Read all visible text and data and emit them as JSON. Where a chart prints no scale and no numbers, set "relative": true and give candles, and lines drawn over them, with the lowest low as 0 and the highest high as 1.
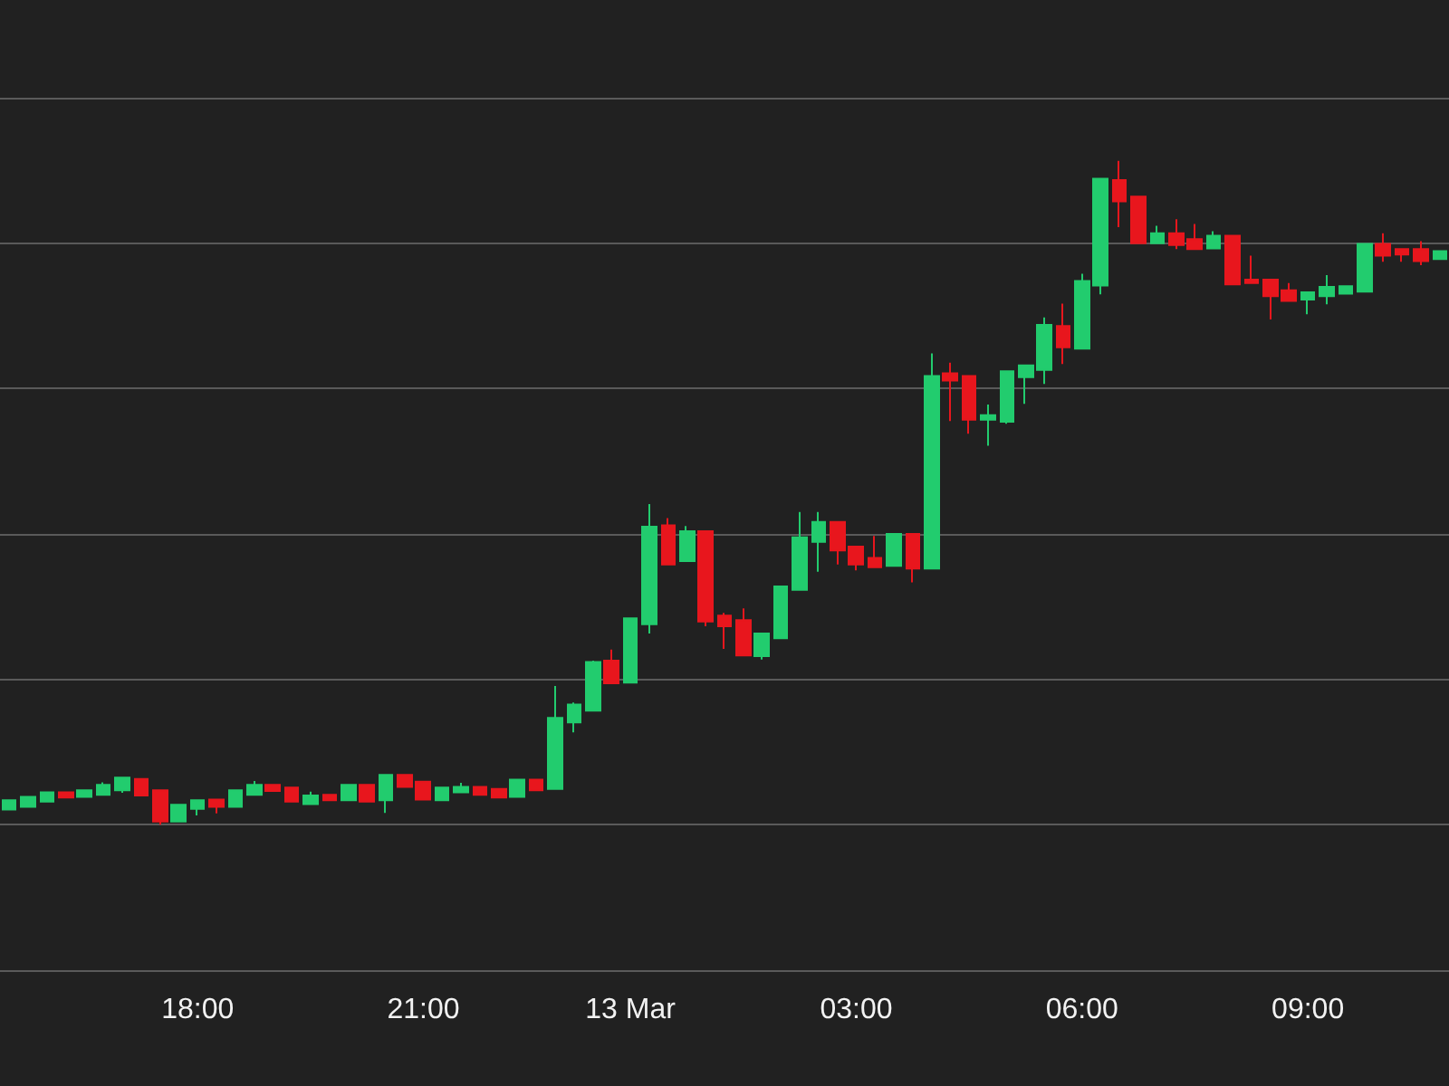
{
  "chart_data": {
    "type": "candlestick",
    "relative": true,
    "grid": "y",
    "categories": [
      null,
      null,
      null,
      null,
      null,
      null,
      null,
      null,
      null,
      null,
      "18:00",
      null,
      null,
      null,
      null,
      null,
      null,
      null,
      null,
      null,
      null,
      null,
      "21:00",
      null,
      null,
      null,
      null,
      null,
      null,
      null,
      null,
      null,
      null,
      "13 Mar",
      null,
      null,
      null,
      null,
      null,
      null,
      null,
      null,
      null,
      null,
      null,
      "03:00",
      null,
      null,
      null,
      null,
      null,
      null,
      null,
      null,
      null,
      null,
      null,
      "06:00",
      null,
      null,
      null,
      null,
      null,
      null,
      null,
      null,
      null,
      null,
      null,
      "09:00",
      null,
      null,
      null,
      null,
      null,
      null,
      null
    ],
    "ohlc": [
      [
        0.023,
        0.037,
        0.023,
        0.037
      ],
      [
        0.027,
        0.042,
        0.027,
        0.042
      ],
      [
        0.035,
        0.049,
        0.035,
        0.049
      ],
      [
        0.049,
        0.049,
        0.041,
        0.041
      ],
      [
        0.042,
        0.052,
        0.042,
        0.052
      ],
      [
        0.045,
        0.064,
        0.045,
        0.06
      ],
      [
        0.052,
        0.071,
        0.048,
        0.071
      ],
      [
        0.069,
        0.069,
        0.044,
        0.044
      ],
      [
        0.052,
        0.052,
        0,
        0.005
      ],
      [
        0.005,
        0.03,
        0.004,
        0.03
      ],
      [
        0.024,
        0.037,
        0.014,
        0.037
      ],
      [
        0.038,
        0.038,
        0.017,
        0.027
      ],
      [
        0.027,
        0.052,
        0.027,
        0.052
      ],
      [
        0.045,
        0.066,
        0.045,
        0.06
      ],
      [
        0.06,
        0.06,
        0.051,
        0.051
      ],
      [
        0.056,
        0.056,
        0.035,
        0.035
      ],
      [
        0.031,
        0.05,
        0.031,
        0.044
      ],
      [
        0.045,
        0.045,
        0.037,
        0.037
      ],
      [
        0.037,
        0.06,
        0.037,
        0.06
      ],
      [
        0.06,
        0.06,
        0.035,
        0.035
      ],
      [
        0.037,
        0.075,
        0.018,
        0.075
      ],
      [
        0.075,
        0.075,
        0.057,
        0.057
      ],
      [
        0.065,
        0.065,
        0.038,
        0.038
      ],
      [
        0.037,
        0.056,
        0.037,
        0.056
      ],
      [
        0.049,
        0.063,
        0.049,
        0.057
      ],
      [
        0.057,
        0.057,
        0.045,
        0.045
      ],
      [
        0.054,
        0.054,
        0.041,
        0.041
      ],
      [
        0.042,
        0.068,
        0.042,
        0.068
      ],
      [
        0.068,
        0.068,
        0.052,
        0.052
      ],
      [
        0.054,
        0.209,
        0.054,
        0.161
      ],
      [
        0.154,
        0.184,
        0.139,
        0.181
      ],
      [
        0.172,
        0.247,
        0.172,
        0.245
      ],
      [
        0.247,
        0.264,
        0.213,
        0.213
      ],
      [
        0.214,
        0.311,
        0.214,
        0.311
      ],
      [
        0.302,
        0.483,
        0.288,
        0.449
      ],
      [
        0.451,
        0.462,
        0.392,
        0.392
      ],
      [
        0.397,
        0.45,
        0.397,
        0.442
      ],
      [
        0.442,
        0.442,
        0.299,
        0.306
      ],
      [
        0.315,
        0.319,
        0.265,
        0.299
      ],
      [
        0.308,
        0.326,
        0.255,
        0.255
      ],
      [
        0.254,
        0.288,
        0.249,
        0.288
      ],
      [
        0.281,
        0.359,
        0.281,
        0.359
      ],
      [
        0.354,
        0.471,
        0.354,
        0.433
      ],
      [
        0.426,
        0.471,
        0.381,
        0.456
      ],
      [
        0.456,
        0.456,
        0.392,
        0.413
      ],
      [
        0.419,
        0.419,
        0.383,
        0.392
      ],
      [
        0.402,
        0.435,
        0.388,
        0.388
      ],
      [
        0.39,
        0.438,
        0.39,
        0.438
      ],
      [
        0.438,
        0.438,
        0.365,
        0.386
      ],
      [
        0.386,
        0.71,
        0.386,
        0.676
      ],
      [
        0.68,
        0.696,
        0.608,
        0.669
      ],
      [
        0.676,
        0.676,
        0.589,
        0.61
      ],
      [
        0.61,
        0.633,
        0.571,
        0.617
      ],
      [
        0.607,
        0.683,
        0.604,
        0.683
      ],
      [
        0.674,
        0.692,
        0.634,
        0.692
      ],
      [
        0.685,
        0.764,
        0.664,
        0.753
      ],
      [
        0.751,
        0.785,
        0.694,
        0.719
      ],
      [
        0.717,
        0.83,
        0.717,
        0.819
      ],
      [
        0.812,
        0.973,
        0.799,
        0.973
      ],
      [
        0.971,
        1,
        0.9,
        0.939
      ],
      [
        0.946,
        0.946,
        0.876,
        0.876
      ],
      [
        0.876,
        0.902,
        0.876,
        0.891
      ],
      [
        0.891,
        0.912,
        0.867,
        0.873
      ],
      [
        0.882,
        0.905,
        0.867,
        0.867
      ],
      [
        0.868,
        0.894,
        0.868,
        0.887
      ],
      [
        0.887,
        0.887,
        0.814,
        0.814
      ],
      [
        0.821,
        0.857,
        0.816,
        0.816
      ],
      [
        0.821,
        0.821,
        0.761,
        0.796
      ],
      [
        0.805,
        0.816,
        0.789,
        0.789
      ],
      [
        0.791,
        0.802,
        0.769,
        0.802
      ],
      [
        0.796,
        0.828,
        0.784,
        0.81
      ],
      [
        0.8,
        0.811,
        0.8,
        0.811
      ],
      [
        0.803,
        0.875,
        0.803,
        0.875
      ],
      [
        0.875,
        0.891,
        0.848,
        0.857
      ],
      [
        0.867,
        0.867,
        0.848,
        0.859
      ],
      [
        0.867,
        0.879,
        0.843,
        0.849
      ],
      [
        0.852,
        0.864,
        0.852,
        0.864
      ]
    ]
  }
}
